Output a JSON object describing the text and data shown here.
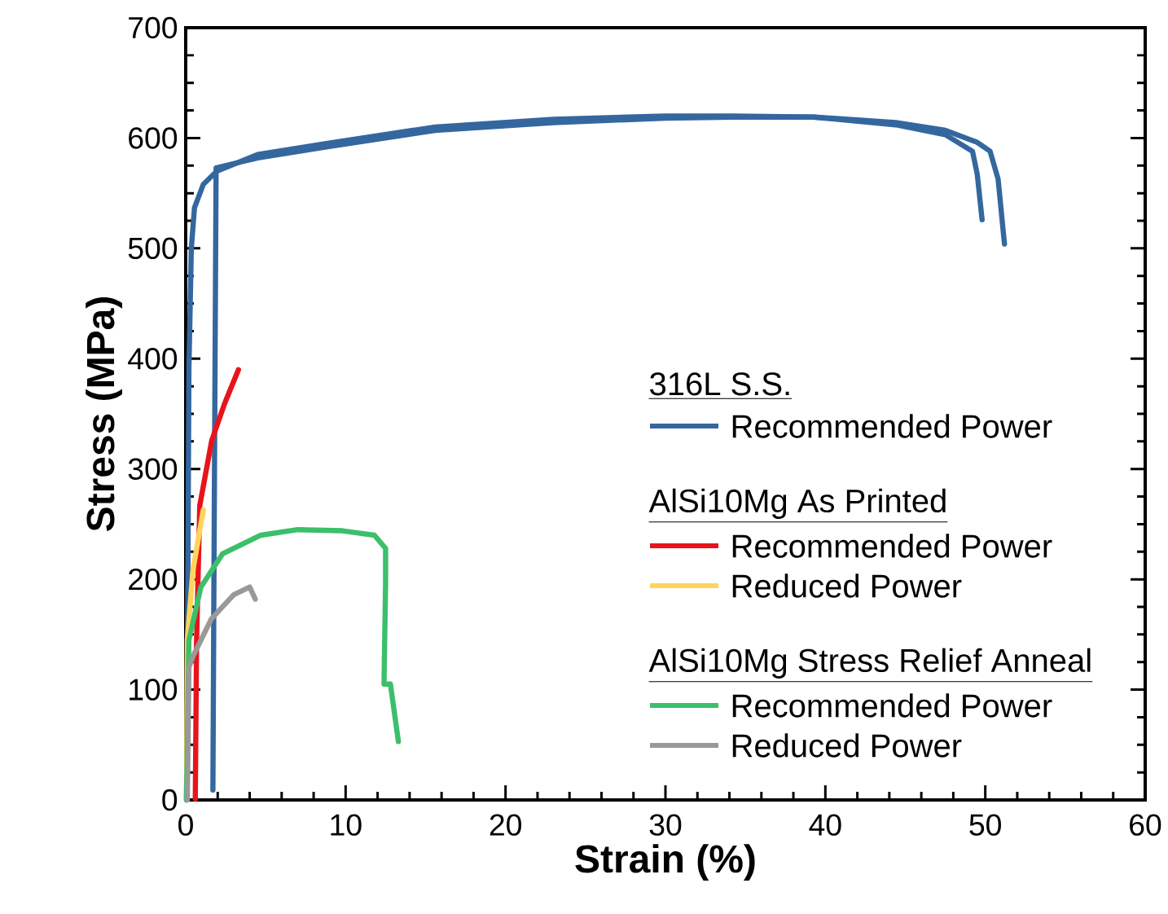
{
  "chart_data": {
    "type": "line",
    "xlabel": "Strain (%)",
    "ylabel": "Stress (MPa)",
    "xlim": [
      0,
      60
    ],
    "ylim": [
      0,
      700
    ],
    "xticks": [
      0,
      10,
      20,
      30,
      40,
      50,
      60
    ],
    "yticks": [
      0,
      100,
      200,
      300,
      400,
      500,
      600,
      700
    ],
    "legend": "bottom right",
    "annotations": [
      "316L S.S.",
      "AlSi10Mg As Printed",
      "AlSi10Mg Stress Relief Anneal"
    ],
    "series": [
      {
        "name": "Recommended Power",
        "color": "#35679f",
        "x": [
          0.05,
          0.1,
          0.2,
          0.35,
          0.55,
          1.1,
          1.95,
          4.5,
          8.8,
          15.6,
          23,
          30,
          34.2,
          39.3,
          44.4,
          47.5,
          49.2,
          49.5,
          49.8
        ],
        "values": [
          0,
          95,
          390,
          500,
          537,
          558,
          570,
          585,
          595,
          610,
          617,
          620,
          620,
          619,
          612,
          603,
          588,
          567,
          526
        ]
      },
      {
        "color": "#35679f",
        "x": [
          1.7,
          1.8,
          1.9,
          4.5,
          8.8,
          15.6,
          23,
          30,
          34.2,
          39.3,
          44.4,
          47.5,
          49.5,
          50.3,
          50.8,
          51.2
        ],
        "values": [
          9,
          300,
          573,
          582,
          592,
          607,
          614,
          618,
          619,
          619,
          614,
          607,
          596,
          588,
          563,
          504
        ]
      },
      {
        "name": "Recommended Power",
        "color": "#e8141b",
        "x": [
          0.6,
          0.68,
          0.88,
          1.63,
          2.45,
          3.3
        ],
        "values": [
          1,
          145,
          267,
          326,
          360,
          390
        ]
      },
      {
        "name": "Reduced Power",
        "color": "#ffd45a",
        "x": [
          0.05,
          0.1,
          0.45,
          1.1
        ],
        "values": [
          0,
          145,
          208,
          263
        ]
      },
      {
        "name": "Recommended Power",
        "color": "#3cbf6b",
        "x": [
          0.05,
          0.2,
          0.95,
          2.3,
          4.7,
          7.0,
          9.8,
          11.8,
          12.5,
          12.5,
          12.4,
          12.8,
          13.3
        ],
        "values": [
          0,
          145,
          193,
          223,
          240,
          245,
          244,
          240,
          228,
          198,
          105,
          105,
          53
        ]
      },
      {
        "name": "Reduced Power",
        "color": "#999999",
        "x": [
          0.1,
          0.2,
          0.45,
          1.6,
          3.0,
          4.0,
          4.35
        ],
        "values": [
          0,
          120,
          130,
          164,
          186,
          193,
          182
        ]
      }
    ]
  }
}
